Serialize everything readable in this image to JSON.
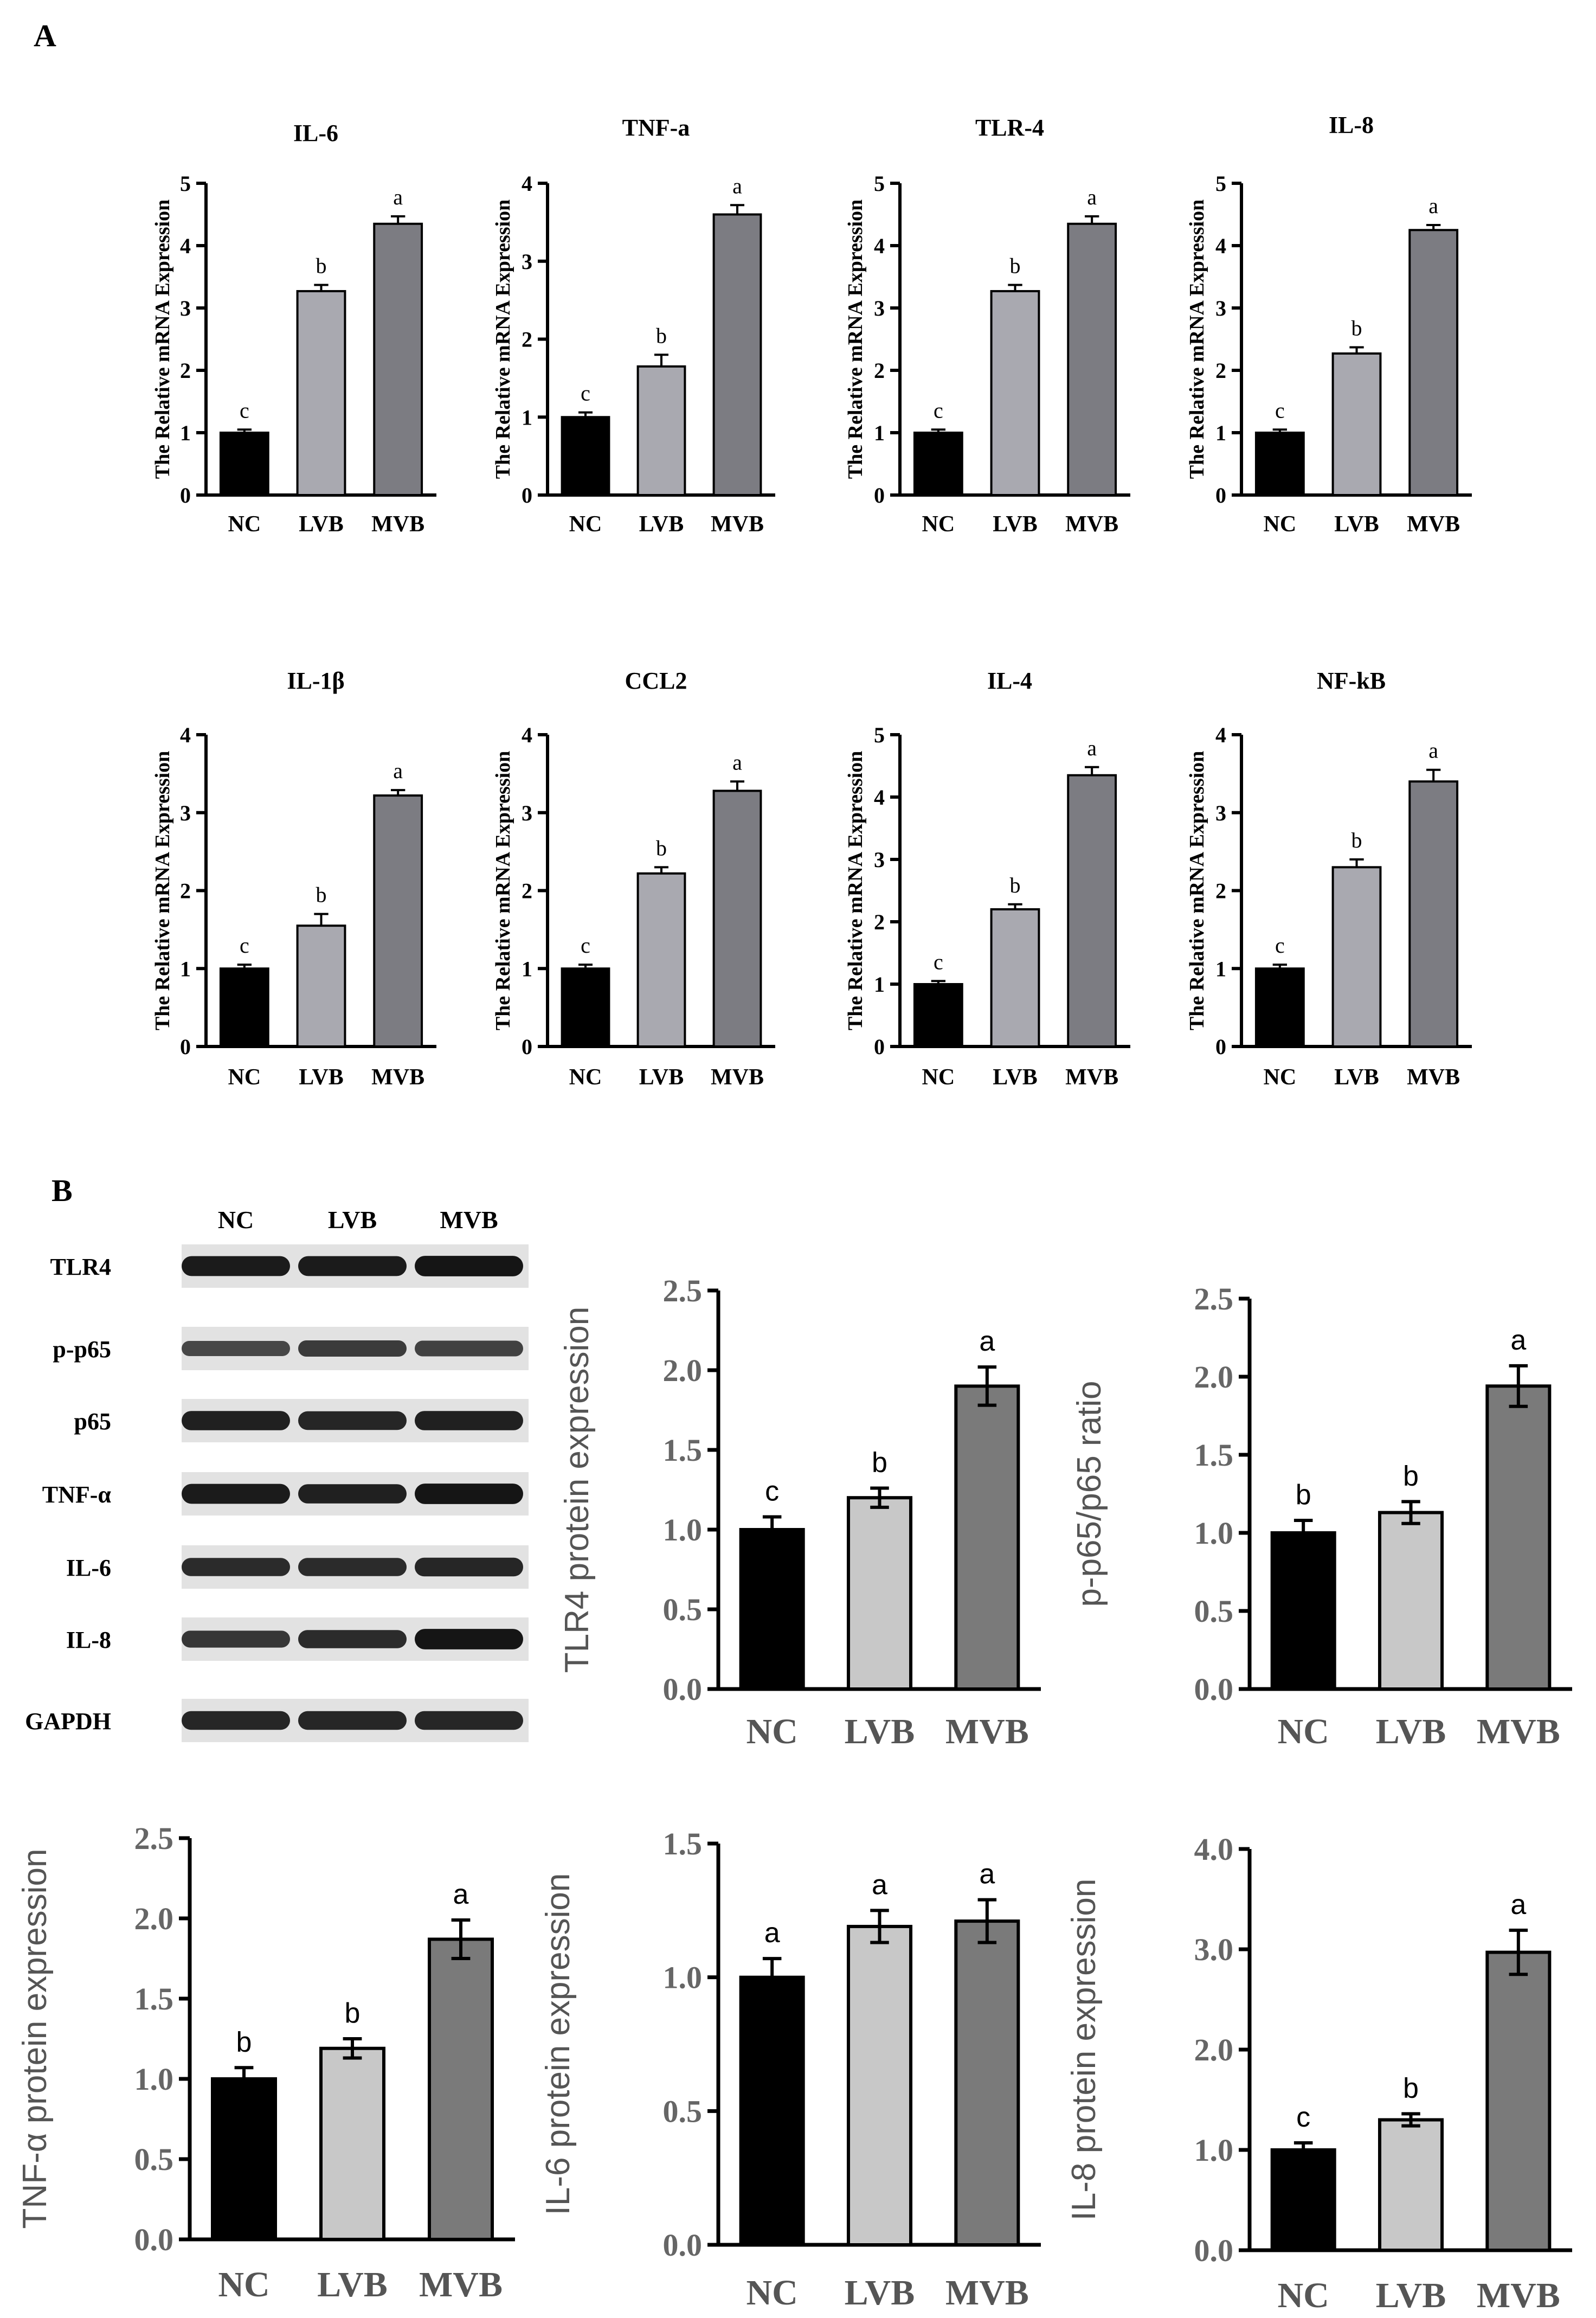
{
  "panel_a_label": "A",
  "panel_b_label": "B",
  "colors": {
    "nc": "#000000",
    "lvb_a": "#a9a9b0",
    "mvb_a": "#7c7c82",
    "lvb_b": "#c8c8c8",
    "mvb_b": "#7a7a7a",
    "axis": "#000000"
  },
  "western_blot": {
    "lane_labels": [
      "NC",
      "LVB",
      "MVB"
    ],
    "rows": [
      {
        "label": "TLR4",
        "intensity": [
          0.85,
          0.85,
          0.9
        ]
      },
      {
        "label": "p-p65",
        "intensity": [
          0.45,
          0.55,
          0.5
        ]
      },
      {
        "label": "p65",
        "intensity": [
          0.8,
          0.75,
          0.8
        ]
      },
      {
        "label": "TNF-α",
        "intensity": [
          0.85,
          0.8,
          0.9
        ]
      },
      {
        "label": "IL-6",
        "intensity": [
          0.7,
          0.7,
          0.75
        ]
      },
      {
        "label": "IL-8",
        "intensity": [
          0.6,
          0.7,
          0.9
        ]
      },
      {
        "label": "GAPDH",
        "intensity": [
          0.75,
          0.75,
          0.75
        ]
      }
    ]
  },
  "chart_data": [
    {
      "type": "bar",
      "title": "IL-6",
      "ylabel": "The Relative mRNA Expression",
      "categories": [
        "NC",
        "LVB",
        "MVB"
      ],
      "values": [
        1.0,
        3.27,
        4.35
      ],
      "errors": [
        0.05,
        0.1,
        0.12
      ],
      "letters": [
        "c",
        "b",
        "a"
      ],
      "ylim": [
        0,
        5
      ],
      "yticks": [
        0,
        1,
        2,
        3,
        4,
        5
      ],
      "ytick_labels": [
        "0",
        "1",
        "2",
        "3",
        "4",
        "5"
      ]
    },
    {
      "type": "bar",
      "title": "TNF-a",
      "ylabel": "The Relative mRNA Expression",
      "categories": [
        "NC",
        "LVB",
        "MVB"
      ],
      "values": [
        1.0,
        1.65,
        3.6
      ],
      "errors": [
        0.06,
        0.15,
        0.12
      ],
      "letters": [
        "c",
        "b",
        "a"
      ],
      "ylim": [
        0,
        4
      ],
      "yticks": [
        0,
        1,
        2,
        3,
        4
      ],
      "ytick_labels": [
        "0",
        "1",
        "2",
        "3",
        "4"
      ]
    },
    {
      "type": "bar",
      "title": "TLR-4",
      "ylabel": "The Relative mRNA Expression",
      "categories": [
        "NC",
        "LVB",
        "MVB"
      ],
      "values": [
        1.0,
        3.27,
        4.35
      ],
      "errors": [
        0.05,
        0.1,
        0.12
      ],
      "letters": [
        "c",
        "b",
        "a"
      ],
      "ylim": [
        0,
        5
      ],
      "yticks": [
        0,
        1,
        2,
        3,
        4,
        5
      ],
      "ytick_labels": [
        "0",
        "1",
        "2",
        "3",
        "4",
        "5"
      ]
    },
    {
      "type": "bar",
      "title": "IL-8",
      "ylabel": "The Relative mRNA Expression",
      "categories": [
        "NC",
        "LVB",
        "MVB"
      ],
      "values": [
        1.0,
        2.27,
        4.25
      ],
      "errors": [
        0.05,
        0.1,
        0.08
      ],
      "letters": [
        "c",
        "b",
        "a"
      ],
      "ylim": [
        0,
        5
      ],
      "yticks": [
        0,
        1,
        2,
        3,
        4,
        5
      ],
      "ytick_labels": [
        "0",
        "1",
        "2",
        "3",
        "4",
        "5"
      ]
    },
    {
      "type": "bar",
      "title": "IL-1β",
      "ylabel": "The Relative mRNA Expression",
      "categories": [
        "NC",
        "LVB",
        "MVB"
      ],
      "values": [
        1.0,
        1.55,
        3.22
      ],
      "errors": [
        0.05,
        0.15,
        0.07
      ],
      "letters": [
        "c",
        "b",
        "a"
      ],
      "ylim": [
        0,
        4
      ],
      "yticks": [
        0,
        1,
        2,
        3,
        4
      ],
      "ytick_labels": [
        "0",
        "1",
        "2",
        "3",
        "4"
      ]
    },
    {
      "type": "bar",
      "title": "CCL2",
      "ylabel": "The Relative mRNA Expression",
      "categories": [
        "NC",
        "LVB",
        "MVB"
      ],
      "values": [
        1.0,
        2.22,
        3.28
      ],
      "errors": [
        0.05,
        0.08,
        0.12
      ],
      "letters": [
        "c",
        "b",
        "a"
      ],
      "ylim": [
        0,
        4
      ],
      "yticks": [
        0,
        1,
        2,
        3,
        4
      ],
      "ytick_labels": [
        "0",
        "1",
        "2",
        "3",
        "4"
      ]
    },
    {
      "type": "bar",
      "title": "IL-4",
      "ylabel": "The Relative mRNA Expression",
      "categories": [
        "NC",
        "LVB",
        "MVB"
      ],
      "values": [
        1.0,
        2.2,
        4.35
      ],
      "errors": [
        0.05,
        0.08,
        0.13
      ],
      "letters": [
        "c",
        "b",
        "a"
      ],
      "ylim": [
        0,
        5
      ],
      "yticks": [
        0,
        1,
        2,
        3,
        4,
        5
      ],
      "ytick_labels": [
        "0",
        "1",
        "2",
        "3",
        "4",
        "5"
      ]
    },
    {
      "type": "bar",
      "title": "NF-kB",
      "ylabel": "The Relative mRNA Expression",
      "categories": [
        "NC",
        "LVB",
        "MVB"
      ],
      "values": [
        1.0,
        2.3,
        3.4
      ],
      "errors": [
        0.05,
        0.1,
        0.15
      ],
      "letters": [
        "c",
        "b",
        "a"
      ],
      "ylim": [
        0,
        4
      ],
      "yticks": [
        0,
        1,
        2,
        3,
        4
      ],
      "ytick_labels": [
        "0",
        "1",
        "2",
        "3",
        "4"
      ]
    },
    {
      "type": "bar",
      "title": "",
      "ylabel": "TLR4 protein expression",
      "categories": [
        "NC",
        "LVB",
        "MVB"
      ],
      "values": [
        1.0,
        1.2,
        1.9
      ],
      "errors": [
        0.08,
        0.06,
        0.12
      ],
      "letters": [
        "c",
        "b",
        "a"
      ],
      "ylim": [
        0,
        2.5
      ],
      "yticks": [
        0,
        0.5,
        1.0,
        1.5,
        2.0,
        2.5
      ],
      "ytick_labels": [
        "0.0",
        "0.5",
        "1.0",
        "1.5",
        "2.0",
        "2.5"
      ]
    },
    {
      "type": "bar",
      "title": "",
      "ylabel": "p-p65/p65 ratio",
      "categories": [
        "NC",
        "LVB",
        "MVB"
      ],
      "values": [
        1.0,
        1.13,
        1.94
      ],
      "errors": [
        0.08,
        0.07,
        0.13
      ],
      "letters": [
        "b",
        "b",
        "a"
      ],
      "ylim": [
        0,
        2.5
      ],
      "yticks": [
        0,
        0.5,
        1.0,
        1.5,
        2.0,
        2.5
      ],
      "ytick_labels": [
        "0.0",
        "0.5",
        "1.0",
        "1.5",
        "2.0",
        "2.5"
      ]
    },
    {
      "type": "bar",
      "title": "",
      "ylabel": "TNF-α protein expression",
      "categories": [
        "NC",
        "LVB",
        "MVB"
      ],
      "values": [
        1.0,
        1.19,
        1.87
      ],
      "errors": [
        0.07,
        0.06,
        0.12
      ],
      "letters": [
        "b",
        "b",
        "a"
      ],
      "ylim": [
        0,
        2.5
      ],
      "yticks": [
        0,
        0.5,
        1.0,
        1.5,
        2.0,
        2.5
      ],
      "ytick_labels": [
        "0.0",
        "0.5",
        "1.0",
        "1.5",
        "2.0",
        "2.5"
      ]
    },
    {
      "type": "bar",
      "title": "",
      "ylabel": "IL-6 protein expression",
      "categories": [
        "NC",
        "LVB",
        "MVB"
      ],
      "values": [
        1.0,
        1.19,
        1.21
      ],
      "errors": [
        0.07,
        0.06,
        0.08
      ],
      "letters": [
        "a",
        "a",
        "a"
      ],
      "ylim": [
        0,
        1.5
      ],
      "yticks": [
        0,
        0.5,
        1.0,
        1.5
      ],
      "ytick_labels": [
        "0.0",
        "0.5",
        "1.0",
        "1.5"
      ]
    },
    {
      "type": "bar",
      "title": "",
      "ylabel": "IL-8 protein expression",
      "categories": [
        "NC",
        "LVB",
        "MVB"
      ],
      "values": [
        1.0,
        1.3,
        2.97
      ],
      "errors": [
        0.07,
        0.06,
        0.22
      ],
      "letters": [
        "c",
        "b",
        "a"
      ],
      "ylim": [
        0,
        4.0
      ],
      "yticks": [
        0,
        1.0,
        2.0,
        3.0,
        4.0
      ],
      "ytick_labels": [
        "0.0",
        "1.0",
        "2.0",
        "3.0",
        "4.0"
      ]
    }
  ]
}
